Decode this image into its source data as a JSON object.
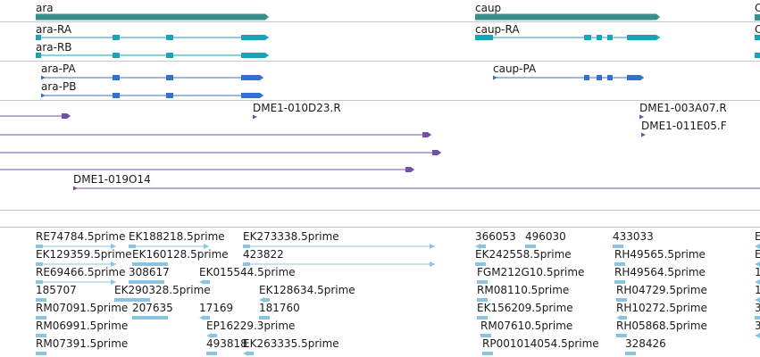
{
  "colors": {
    "gene": "#3a8f8f",
    "transcript_cdna": "#1aa3b7",
    "transcript_protein": "#3570c9",
    "clone": "#7050a8",
    "est": "#8ac4e0",
    "separator": "#c8c8c8",
    "separator_blue": "#9ccfe0"
  },
  "tracks": {
    "genes": {
      "items": [
        {
          "label": "ara"
        },
        {
          "label": "caup"
        },
        {
          "label": "C"
        }
      ]
    },
    "transcripts": {
      "items": [
        {
          "label": "ara-RA"
        },
        {
          "label": "ara-RB"
        },
        {
          "label": "caup-RA"
        },
        {
          "label": "C"
        }
      ]
    },
    "proteins": {
      "items": [
        {
          "label": "ara-PA"
        },
        {
          "label": "ara-PB"
        },
        {
          "label": "caup-PA"
        }
      ]
    },
    "clones": {
      "items": [
        {
          "label": "DME1-010D23.R"
        },
        {
          "label": "DME1-003A07.R"
        },
        {
          "label": "DME1-011E05.F"
        },
        {
          "label": "DME1-019O14"
        }
      ]
    },
    "ests": {
      "items": [
        {
          "label": "RE74784.5prime"
        },
        {
          "label": "EK188218.5prime"
        },
        {
          "label": "EK273338.5prime"
        },
        {
          "label": "366053"
        },
        {
          "label": "496030"
        },
        {
          "label": "433033"
        },
        {
          "label": "E"
        },
        {
          "label": "EK129359.5prime"
        },
        {
          "label": "EK160128.5prime"
        },
        {
          "label": "423822"
        },
        {
          "label": "EK242558.5prime"
        },
        {
          "label": "RH49565.5prime"
        },
        {
          "label": "E"
        },
        {
          "label": "RE69466.5prime"
        },
        {
          "label": "308617"
        },
        {
          "label": "EK015544.5prime"
        },
        {
          "label": "FGM212G10.5prime"
        },
        {
          "label": "RH49564.5prime"
        },
        {
          "label": "1"
        },
        {
          "label": "185707"
        },
        {
          "label": "EK290328.5prime"
        },
        {
          "label": "EK128634.5prime"
        },
        {
          "label": "RM08110.5prime"
        },
        {
          "label": "RH04729.5prime"
        },
        {
          "label": "1"
        },
        {
          "label": "RM07091.5prime"
        },
        {
          "label": "207635"
        },
        {
          "label": "17169"
        },
        {
          "label": "181760"
        },
        {
          "label": "EK156209.5prime"
        },
        {
          "label": "RH10272.5prime"
        },
        {
          "label": "3"
        },
        {
          "label": "RM06991.5prime"
        },
        {
          "label": "EP16229.3prime"
        },
        {
          "label": "RM07610.5prime"
        },
        {
          "label": "RH05868.5prime"
        },
        {
          "label": "3"
        },
        {
          "label": "RM07391.5prime"
        },
        {
          "label": "493818"
        },
        {
          "label": "EK263335.5prime"
        },
        {
          "label": "RP001014054.5prime"
        },
        {
          "label": "328426"
        }
      ]
    }
  }
}
